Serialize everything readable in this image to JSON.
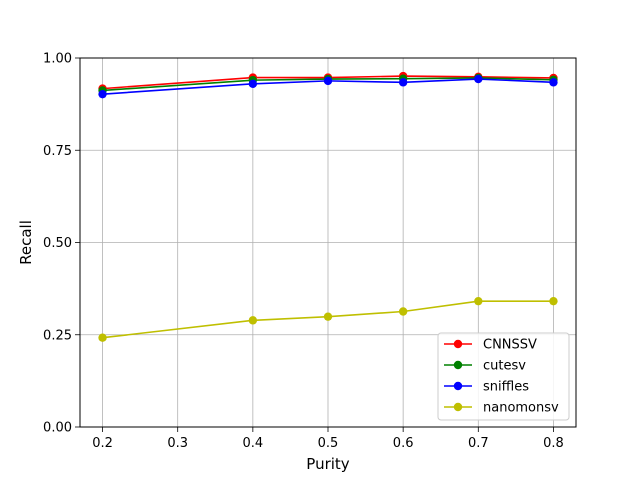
{
  "chart_data": {
    "type": "line",
    "title": "",
    "xlabel": "Purity",
    "ylabel": "Recall",
    "xlim": [
      0.17,
      0.83
    ],
    "ylim": [
      0.0,
      1.0
    ],
    "x_ticks": [
      0.2,
      0.3,
      0.4,
      0.5,
      0.6,
      0.7,
      0.8
    ],
    "x_tick_labels": [
      "0.2",
      "0.3",
      "0.4",
      "0.5",
      "0.6",
      "0.7",
      "0.8"
    ],
    "y_ticks": [
      0.0,
      0.25,
      0.5,
      0.75,
      1.0
    ],
    "y_tick_labels": [
      "0.00",
      "0.25",
      "0.50",
      "0.75",
      "1.00"
    ],
    "grid": true,
    "legend_position": "bottom-right",
    "x": [
      0.2,
      0.4,
      0.5,
      0.6,
      0.7,
      0.8
    ],
    "series": [
      {
        "name": "CNNSSV",
        "color": "#ff0000",
        "values": [
          0.917,
          0.947,
          0.947,
          0.951,
          0.949,
          0.946
        ]
      },
      {
        "name": "cutesv",
        "color": "#008000",
        "values": [
          0.912,
          0.94,
          0.943,
          0.944,
          0.946,
          0.941
        ]
      },
      {
        "name": "sniffles",
        "color": "#0000ff",
        "values": [
          0.902,
          0.93,
          0.938,
          0.934,
          0.943,
          0.934
        ]
      },
      {
        "name": "nanomonsv",
        "color": "#bfbf00",
        "values": [
          0.242,
          0.289,
          0.299,
          0.313,
          0.341,
          0.341
        ]
      }
    ]
  }
}
